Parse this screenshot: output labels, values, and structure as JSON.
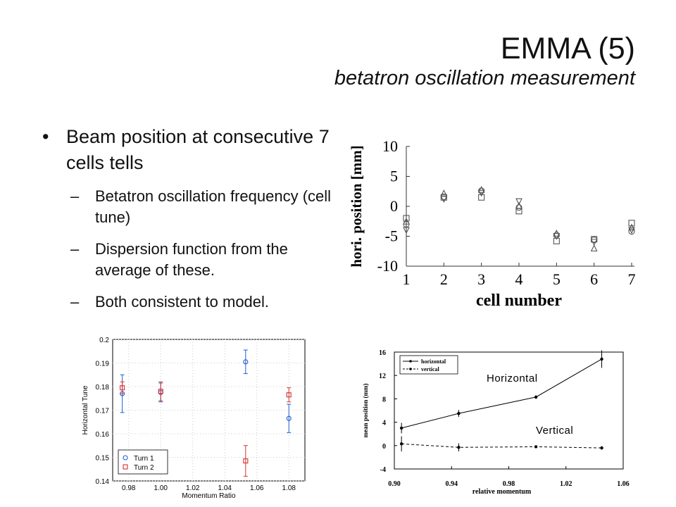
{
  "slide": {
    "title": "EMMA (5)",
    "subtitle": "betatron oscillation measurement",
    "bullet_main": "Beam position at consecutive 7 cells tells",
    "sub_bullets": [
      "Betatron oscillation frequency (cell tune)",
      "Dispersion function from the average of these.",
      "Both consistent to model."
    ],
    "dash": "–",
    "dot": "•"
  },
  "chart_data": [
    {
      "id": "cell-position",
      "type": "scatter",
      "xlabel": "cell number",
      "ylabel": "hori. position [mm]",
      "xlim": [
        1,
        7
      ],
      "ylim": [
        -10,
        10
      ],
      "xticks": [
        "1",
        "2",
        "3",
        "4",
        "5",
        "6",
        "7"
      ],
      "yticks": [
        "10",
        "5",
        "0",
        "-5",
        "-10"
      ],
      "x": [
        1,
        2,
        3,
        4,
        5,
        6,
        7
      ],
      "series": [
        {
          "marker": "square",
          "values": [
            -2.0,
            1.5,
            1.5,
            -0.8,
            -5.8,
            -5.5,
            -2.8
          ]
        },
        {
          "marker": "circle",
          "values": [
            -3.0,
            1.6,
            2.6,
            -0.2,
            -4.8,
            -5.6,
            -4.2
          ]
        },
        {
          "marker": "triangle-up",
          "values": [
            -2.5,
            2.2,
            2.8,
            0.1,
            -4.5,
            -7.0,
            -3.5
          ]
        },
        {
          "marker": "triangle-down",
          "values": [
            -4.0,
            1.2,
            2.2,
            0.8,
            -5.0,
            -6.0,
            -4.0
          ]
        }
      ]
    },
    {
      "id": "horizontal-tune",
      "type": "scatter",
      "xlabel": "Momentum Ratio",
      "ylabel": "Horizontal Tune",
      "xlim": [
        0.97,
        1.09
      ],
      "ylim": [
        0.14,
        0.2
      ],
      "xticks": [
        "0.98",
        "1.00",
        "1.02",
        "1.04",
        "1.06",
        "1.08"
      ],
      "yticks": [
        "0.2",
        "0.19",
        "0.18",
        "0.17",
        "0.16",
        "0.15",
        "0.14"
      ],
      "legend": "bottom-left",
      "series": [
        {
          "name": "Turn 1",
          "color": "#1f5fd0",
          "marker": "circle",
          "x": [
            0.976,
            1.0,
            1.053,
            1.08
          ],
          "values": [
            0.177,
            0.1775,
            0.1905,
            0.1665
          ],
          "err": [
            0.008,
            0.004,
            0.005,
            0.006
          ]
        },
        {
          "name": "Turn 2",
          "color": "#d83030",
          "marker": "square",
          "x": [
            0.976,
            1.0,
            1.053,
            1.08
          ],
          "values": [
            0.1795,
            0.178,
            0.1485,
            0.1765
          ],
          "err": [
            0.0025,
            0.004,
            0.0065,
            0.003
          ]
        }
      ]
    },
    {
      "id": "mean-position",
      "type": "line",
      "xlabel": "relative momentum",
      "ylabel": "mean position (mm)",
      "xlim": [
        0.9,
        1.06
      ],
      "ylim": [
        -4,
        16
      ],
      "xticks": [
        "0.90",
        "0.94",
        "0.98",
        "1.02",
        "1.06"
      ],
      "yticks": [
        "16",
        "12",
        "8",
        "4",
        "0",
        "-4"
      ],
      "legend": "top-left",
      "annotations": [
        "Horizontal",
        "Vertical"
      ],
      "series": [
        {
          "name": "horizontal",
          "style": "solid",
          "x": [
            0.905,
            0.945,
            0.999,
            1.045
          ],
          "values": [
            3.0,
            5.5,
            8.3,
            14.8
          ],
          "err": [
            0.9,
            0.6,
            0.3,
            1.5
          ]
        },
        {
          "name": "vertical",
          "style": "dashed",
          "x": [
            0.905,
            0.945,
            0.999,
            1.045
          ],
          "values": [
            0.3,
            -0.3,
            -0.2,
            -0.4
          ],
          "err": [
            1.3,
            0.7,
            0.2,
            0.3
          ]
        }
      ]
    }
  ]
}
